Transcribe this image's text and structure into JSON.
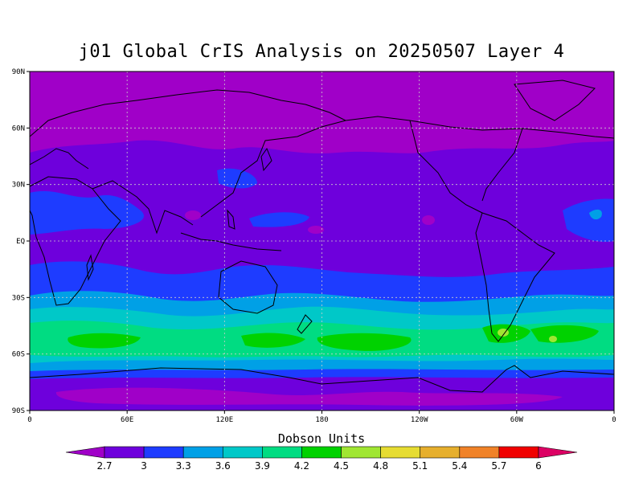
{
  "title": "j01 Global CrIS Analysis on 20250507 Layer 4",
  "colorbar_title": "Dobson Units",
  "lat_ticks": [
    "90N",
    "60N",
    "30N",
    "EQ",
    "30S",
    "60S",
    "90S"
  ],
  "lon_ticks": [
    "0",
    "60E",
    "120E",
    "180",
    "120W",
    "60W",
    "0"
  ],
  "colorbar": {
    "labels": [
      "2.7",
      "3",
      "3.3",
      "3.6",
      "3.9",
      "4.2",
      "4.5",
      "4.8",
      "5.1",
      "5.4",
      "5.7",
      "6"
    ],
    "colors": [
      "#a000c8",
      "#6e00dc",
      "#1e3cff",
      "#00a0e6",
      "#00c8c8",
      "#00dc82",
      "#00d200",
      "#a0e632",
      "#e6dc32",
      "#e6af2d",
      "#f08228",
      "#f00000",
      "#dc0064"
    ]
  },
  "colors": {
    "level_2_7": "#a000c8",
    "level_3": "#6e00dc",
    "level_3_3": "#1e3cff",
    "level_3_6": "#00a0e6",
    "level_3_9": "#00c8c8",
    "level_4_2": "#00dc82",
    "level_4_5": "#00d200",
    "level_4_8": "#a0e632"
  }
}
